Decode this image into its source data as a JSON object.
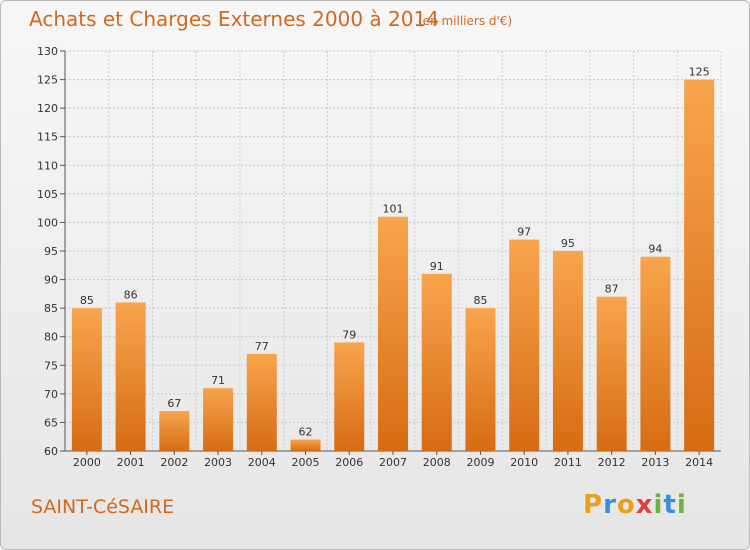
{
  "header": {
    "title": "Achats et Charges Externes 2000 à 2014",
    "subtitle": "(en milliers d'€)"
  },
  "footer": {
    "commune": "SAINT-CéSAIRE",
    "logo_text": "Proxiti"
  },
  "colors": {
    "accent": "#d2691e",
    "bar_light": "#f7a04a",
    "bar_dark": "#d86e16"
  },
  "chart_data": {
    "type": "bar",
    "title": "Achats et Charges Externes 2000 à 2014",
    "subtitle": "(en milliers d'€)",
    "categories": [
      "2000",
      "2001",
      "2002",
      "2003",
      "2004",
      "2005",
      "2006",
      "2007",
      "2008",
      "2009",
      "2010",
      "2011",
      "2012",
      "2013",
      "2014"
    ],
    "values": [
      85,
      86,
      67,
      71,
      77,
      62,
      79,
      101,
      91,
      85,
      97,
      95,
      87,
      94,
      125
    ],
    "ylim": [
      60,
      130
    ],
    "yticks": [
      60,
      65,
      70,
      75,
      80,
      85,
      90,
      95,
      100,
      105,
      110,
      115,
      120,
      125,
      130
    ],
    "grid": true,
    "data_labels": true
  }
}
